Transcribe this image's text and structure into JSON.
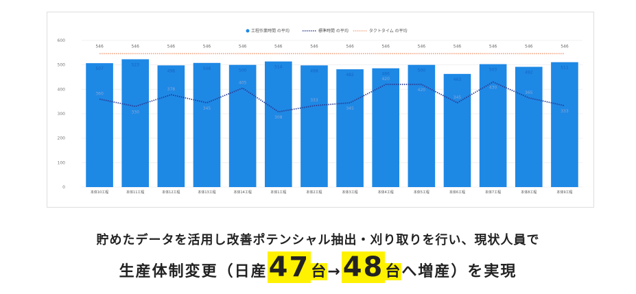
{
  "chart_data": {
    "type": "bar",
    "categories": [
      "本体10工程",
      "本体11工程",
      "本体12工程",
      "本体13工程",
      "本体14工程",
      "本体1工程",
      "本体2工程",
      "本体3工程",
      "本体4工程",
      "本体5工程",
      "本体6工程",
      "本体7工程",
      "本体8工程",
      "本体9工程"
    ],
    "series": [
      {
        "name": "工程作業時間 の平均",
        "type": "bar",
        "color": "#1e88e5",
        "values": [
          507,
          523,
          498,
          508,
          500,
          514,
          498,
          482,
          486,
          500,
          463,
          503,
          492,
          511
        ]
      },
      {
        "name": "標準時間 の平均",
        "type": "line",
        "color": "#2a3a8f",
        "values": [
          360,
          330,
          378,
          345,
          405,
          308,
          333,
          345,
          420,
          420,
          345,
          430,
          365,
          333
        ]
      },
      {
        "name": "タクトタイム の平均",
        "type": "line",
        "color": "#f4a582",
        "values": [
          546,
          546,
          546,
          546,
          546,
          546,
          546,
          546,
          546,
          546,
          546,
          546,
          546,
          546
        ]
      }
    ],
    "ylim": [
      0,
      600
    ],
    "yticks": [
      0,
      100,
      200,
      300,
      400,
      500,
      600
    ],
    "grid": true
  },
  "caption": {
    "line1": "貯めたデータを活用し改善ポテンシャル抽出・刈り取りを行い、現状人員で",
    "line2": [
      "生産体制変更（日産",
      "47",
      "台",
      "→",
      "48",
      "台",
      "へ増産）を実現"
    ]
  }
}
